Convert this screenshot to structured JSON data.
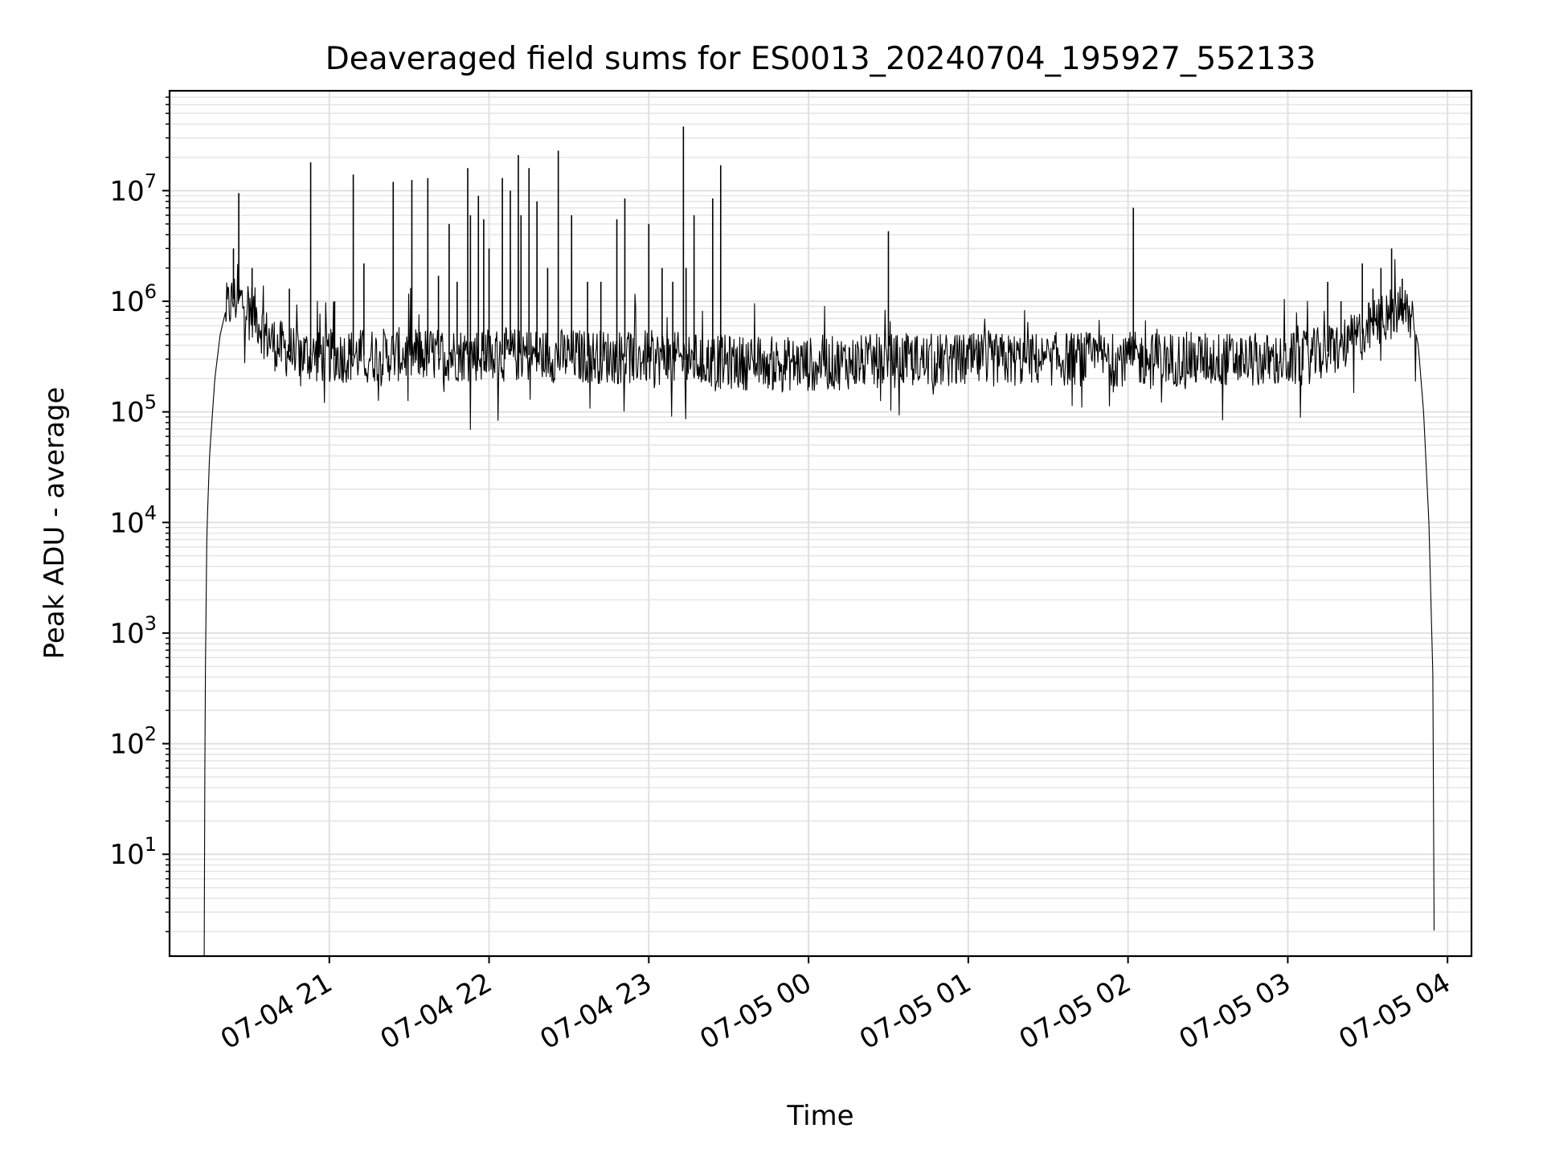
{
  "chart_data": {
    "type": "line",
    "title": "Deaveraged field sums for ES0013_20240704_195927_552133",
    "xlabel": "Time",
    "ylabel": "Peak ADU - average",
    "x_axis_type": "datetime",
    "y_scale": "log",
    "xlim": [
      "2024-07-04T20:00:00",
      "2024-07-05T04:09:00"
    ],
    "ylim": [
      1.2,
      80000000
    ],
    "grid": true,
    "grid_minor": true,
    "line_color": "#000000",
    "x_ticks": [
      {
        "label": "07-04 21",
        "value": "2024-07-04T21:00:00"
      },
      {
        "label": "07-04 22",
        "value": "2024-07-04T22:00:00"
      },
      {
        "label": "07-04 23",
        "value": "2024-07-04T23:00:00"
      },
      {
        "label": "07-05 00",
        "value": "2024-07-05T00:00:00"
      },
      {
        "label": "07-05 01",
        "value": "2024-07-05T01:00:00"
      },
      {
        "label": "07-05 02",
        "value": "2024-07-05T02:00:00"
      },
      {
        "label": "07-05 03",
        "value": "2024-07-05T03:00:00"
      },
      {
        "label": "07-05 04",
        "value": "2024-07-05T04:00:00"
      }
    ],
    "y_ticks": [
      {
        "base": "10",
        "exp": "1",
        "value": 10
      },
      {
        "base": "10",
        "exp": "2",
        "value": 100
      },
      {
        "base": "10",
        "exp": "3",
        "value": 1000
      },
      {
        "base": "10",
        "exp": "4",
        "value": 10000
      },
      {
        "base": "10",
        "exp": "5",
        "value": 100000
      },
      {
        "base": "10",
        "exp": "6",
        "value": 1000000
      },
      {
        "base": "10",
        "exp": "7",
        "value": 10000000
      }
    ],
    "series": [
      {
        "points": [
          [
            "2024-07-04T20:13:00",
            1.2
          ],
          [
            "2024-07-04T20:13:20",
            250
          ],
          [
            "2024-07-04T20:14:00",
            8000
          ],
          [
            "2024-07-04T20:15:00",
            40000
          ],
          [
            "2024-07-04T20:17:00",
            200000
          ],
          [
            "2024-07-04T20:19:00",
            500000
          ],
          [
            "2024-07-04T20:21:00",
            800000
          ],
          [
            "2024-07-04T20:24:00",
            1050000
          ],
          [
            "2024-07-04T20:27:00",
            1000000
          ],
          [
            "2024-07-04T20:30:00",
            900000
          ],
          [
            "2024-07-04T20:33:00",
            700000
          ],
          [
            "2024-07-04T20:36:00",
            500000
          ],
          [
            "2024-07-04T20:40:00",
            400000
          ],
          [
            "2024-07-04T20:45:00",
            350000
          ],
          [
            "2024-07-04T20:55:00",
            320000
          ],
          [
            "2024-07-04T21:05:00",
            320000
          ],
          [
            "2024-07-04T21:30:00",
            330000
          ],
          [
            "2024-07-04T22:00:00",
            330000
          ],
          [
            "2024-07-04T22:30:00",
            320000
          ],
          [
            "2024-07-04T23:00:00",
            310000
          ],
          [
            "2024-07-04T23:30:00",
            280000
          ],
          [
            "2024-07-05T00:00:00",
            270000
          ],
          [
            "2024-07-05T00:30:00",
            290000
          ],
          [
            "2024-07-05T01:00:00",
            290000
          ],
          [
            "2024-07-05T01:30:00",
            300000
          ],
          [
            "2024-07-05T02:00:00",
            300000
          ],
          [
            "2024-07-05T02:30:00",
            300000
          ],
          [
            "2024-07-05T02:55:00",
            290000
          ],
          [
            "2024-07-05T03:05:00",
            300000
          ],
          [
            "2024-07-05T03:15:00",
            350000
          ],
          [
            "2024-07-05T03:25:00",
            450000
          ],
          [
            "2024-07-05T03:32:00",
            600000
          ],
          [
            "2024-07-05T03:38:00",
            750000
          ],
          [
            "2024-07-05T03:43:00",
            850000
          ],
          [
            "2024-07-05T03:47:00",
            700000
          ],
          [
            "2024-07-05T03:49:00",
            400000
          ],
          [
            "2024-07-05T03:51:00",
            100000
          ],
          [
            "2024-07-05T03:53:00",
            10000
          ],
          [
            "2024-07-05T03:54:30",
            400
          ],
          [
            "2024-07-05T03:55:00",
            1.2
          ]
        ]
      }
    ],
    "spikes": [
      [
        "2024-07-04T20:24:00",
        3000000
      ],
      [
        "2024-07-04T20:26:00",
        9500000
      ],
      [
        "2024-07-04T20:31:00",
        2000000
      ],
      [
        "2024-07-04T20:45:00",
        1300000
      ],
      [
        "2024-07-04T20:53:00",
        18000000
      ],
      [
        "2024-07-04T21:02:00",
        1000000
      ],
      [
        "2024-07-04T21:09:00",
        14000000
      ],
      [
        "2024-07-04T21:13:00",
        2200000
      ],
      [
        "2024-07-04T21:24:00",
        12000000
      ],
      [
        "2024-07-04T21:31:00",
        12500000
      ],
      [
        "2024-07-04T21:37:00",
        13000000
      ],
      [
        "2024-07-04T21:41:00",
        1700000
      ],
      [
        "2024-07-04T21:45:00",
        5000000
      ],
      [
        "2024-07-04T21:48:00",
        1500000
      ],
      [
        "2024-07-04T21:52:00",
        16000000
      ],
      [
        "2024-07-04T21:53:00",
        6000000
      ],
      [
        "2024-07-04T21:56:00",
        9000000
      ],
      [
        "2024-07-04T21:58:00",
        5500000
      ],
      [
        "2024-07-04T22:00:00",
        3000000
      ],
      [
        "2024-07-04T22:05:00",
        13000000
      ],
      [
        "2024-07-04T22:08:00",
        10000000
      ],
      [
        "2024-07-04T22:11:00",
        21000000
      ],
      [
        "2024-07-04T22:12:00",
        6000000
      ],
      [
        "2024-07-04T22:15:00",
        16000000
      ],
      [
        "2024-07-04T22:18:00",
        8000000
      ],
      [
        "2024-07-04T22:22:00",
        2000000
      ],
      [
        "2024-07-04T22:26:00",
        23000000
      ],
      [
        "2024-07-04T22:31:00",
        6000000
      ],
      [
        "2024-07-04T22:37:00",
        1500000
      ],
      [
        "2024-07-04T22:42:00",
        1500000
      ],
      [
        "2024-07-04T22:48:00",
        5500000
      ],
      [
        "2024-07-04T22:51:00",
        8500000
      ],
      [
        "2024-07-04T23:00:00",
        5000000
      ],
      [
        "2024-07-04T23:05:00",
        2000000
      ],
      [
        "2024-07-04T23:09:00",
        1500000
      ],
      [
        "2024-07-04T23:13:00",
        38000000
      ],
      [
        "2024-07-04T23:14:00",
        2000000
      ],
      [
        "2024-07-04T23:17:00",
        6000000
      ],
      [
        "2024-07-04T23:24:00",
        8500000
      ],
      [
        "2024-07-04T23:27:00",
        17000000
      ],
      [
        "2024-07-05T00:30:00",
        4300000
      ],
      [
        "2024-07-05T02:02:00",
        7000000
      ],
      [
        "2024-07-05T03:15:00",
        1500000
      ],
      [
        "2024-07-05T03:20:00",
        1000000
      ],
      [
        "2024-07-05T03:28:00",
        2200000
      ],
      [
        "2024-07-05T03:32:00",
        1300000
      ],
      [
        "2024-07-05T03:35:00",
        2000000
      ],
      [
        "2024-07-05T03:39:00",
        3000000
      ],
      [
        "2024-07-05T03:43:00",
        1600000
      ]
    ]
  }
}
